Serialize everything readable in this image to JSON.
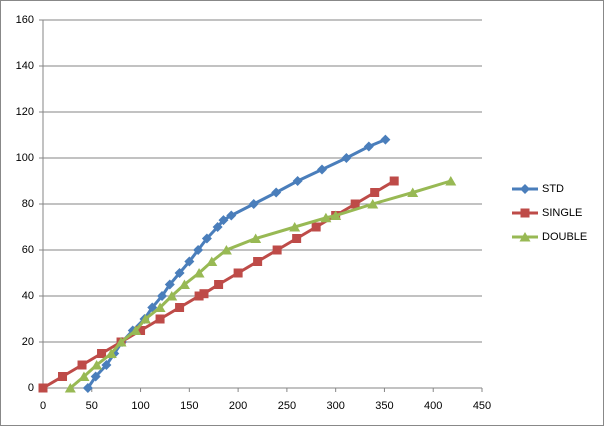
{
  "chart_data": {
    "type": "scatter-line",
    "xlim": [
      0,
      450
    ],
    "xticks": [
      0,
      50,
      100,
      150,
      200,
      250,
      300,
      350,
      400,
      450
    ],
    "ylim": [
      0,
      160
    ],
    "yticks": [
      0,
      20,
      40,
      60,
      80,
      100,
      120,
      140,
      160
    ],
    "grid": true,
    "legend": "right",
    "series": [
      {
        "name": "STD",
        "color": "#4a7ebb",
        "marker": "diamond",
        "x": [
          46,
          54,
          65,
          73,
          81,
          92,
          104,
          112,
          122,
          130,
          140,
          150,
          159,
          168,
          179,
          185,
          193,
          216,
          239,
          261,
          286,
          311,
          334,
          351
        ],
        "values": [
          0,
          5,
          10,
          15,
          20,
          25,
          30,
          35,
          40,
          45,
          50,
          55,
          60,
          65,
          70,
          73,
          75,
          80,
          85,
          90,
          95,
          100,
          105,
          108
        ]
      },
      {
        "name": "SINGLE",
        "color": "#be4b48",
        "marker": "square",
        "x": [
          0,
          20,
          40,
          60,
          80,
          100,
          120,
          140,
          160,
          165,
          180,
          200,
          220,
          240,
          260,
          280,
          300,
          320,
          340,
          360
        ],
        "values": [
          0,
          5,
          10,
          15,
          20,
          25,
          30,
          35,
          40,
          41,
          45,
          50,
          55,
          60,
          65,
          70,
          75,
          80,
          85,
          90
        ]
      },
      {
        "name": "DOUBLE",
        "color": "#98b954",
        "marker": "triangle",
        "x": [
          28,
          42,
          55,
          70,
          80,
          95,
          105,
          120,
          132,
          145,
          160,
          173,
          188,
          218,
          258,
          290,
          300,
          338,
          379,
          418
        ],
        "values": [
          0,
          5,
          10,
          15,
          20,
          25,
          30,
          35,
          40,
          45,
          50,
          55,
          60,
          65,
          70,
          74,
          75,
          80,
          85,
          90
        ]
      }
    ]
  }
}
